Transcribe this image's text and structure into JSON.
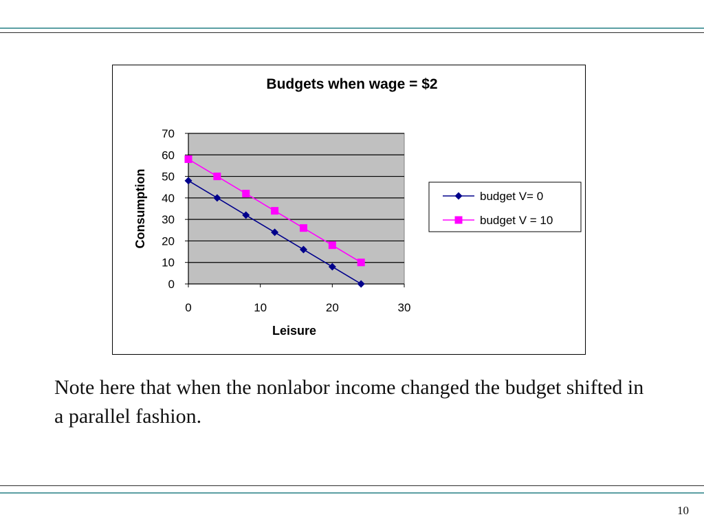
{
  "slide": {
    "body_text": "Note here that when the nonlabor income changed the budget shifted in a parallel fashion.",
    "page_number": "10"
  },
  "colors": {
    "plot_background": "#c0c0c0",
    "series_1": "#00008b",
    "series_2": "#ff00ff",
    "rule_teal": "#5a9ea2"
  },
  "chart_data": {
    "type": "line",
    "title": "Budgets when wage = $2",
    "xlabel": "Leisure",
    "ylabel": "Consumption",
    "xlim": [
      0,
      30
    ],
    "ylim": [
      0,
      70
    ],
    "xticks": [
      "0",
      "10",
      "20",
      "30"
    ],
    "yticks": [
      "0",
      "10",
      "20",
      "30",
      "40",
      "50",
      "60",
      "70"
    ],
    "grid": "horizontal",
    "legend_position": "right",
    "series": [
      {
        "name": "budget V= 0",
        "marker": "diamond",
        "color": "#00008b",
        "x": [
          0,
          4,
          8,
          12,
          16,
          20,
          24
        ],
        "y": [
          48,
          40,
          32,
          24,
          16,
          8,
          0
        ]
      },
      {
        "name": "budget V = 10",
        "marker": "square",
        "color": "#ff00ff",
        "x": [
          0,
          4,
          8,
          12,
          16,
          20,
          24
        ],
        "y": [
          58,
          50,
          42,
          34,
          26,
          18,
          10
        ]
      }
    ]
  }
}
